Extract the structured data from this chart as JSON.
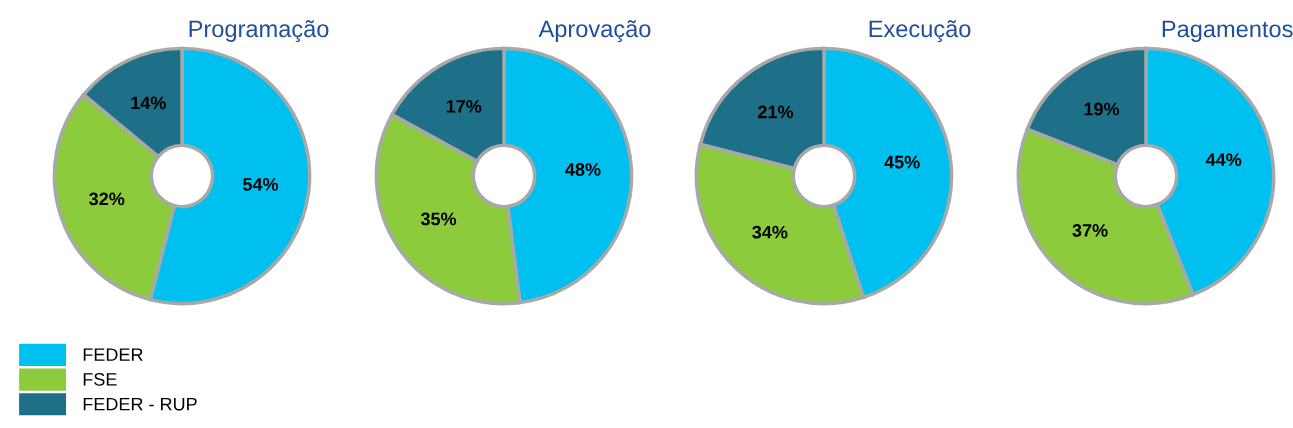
{
  "chart_data": [
    {
      "type": "donut",
      "title": "Programação",
      "categories": [
        "FEDER",
        "FSE",
        "FEDER - RUP"
      ],
      "values": [
        54,
        32,
        14
      ],
      "colors": [
        "#00c0f0",
        "#8ccc3c",
        "#1e7088"
      ],
      "value_labels": [
        "54%",
        "32%",
        "14%"
      ],
      "legend": "bottom left"
    },
    {
      "type": "donut",
      "title": "Aprovação",
      "categories": [
        null,
        null,
        null
      ],
      "values": [
        48,
        35,
        17
      ],
      "colors": [
        "#00c0f0",
        "#8ccc3c",
        "#1e7088"
      ],
      "value_labels": [
        "48%",
        "35%",
        "17%"
      ]
    },
    {
      "type": "donut",
      "title": "Execução",
      "categories": [
        null,
        null,
        null
      ],
      "values": [
        45,
        34,
        21
      ],
      "colors": [
        "#00c0f0",
        "#8ccc3c",
        "#1e7088"
      ],
      "value_labels": [
        "45%",
        "34%",
        "21%"
      ]
    },
    {
      "type": "donut",
      "title": "Pagamentos",
      "categories": [
        null,
        null,
        null
      ],
      "values": [
        44,
        37,
        19
      ],
      "colors": [
        "#00c0f0",
        "#8ccc3c",
        "#1e7088"
      ],
      "value_labels": [
        "44%",
        "37%",
        "19%"
      ]
    }
  ]
}
